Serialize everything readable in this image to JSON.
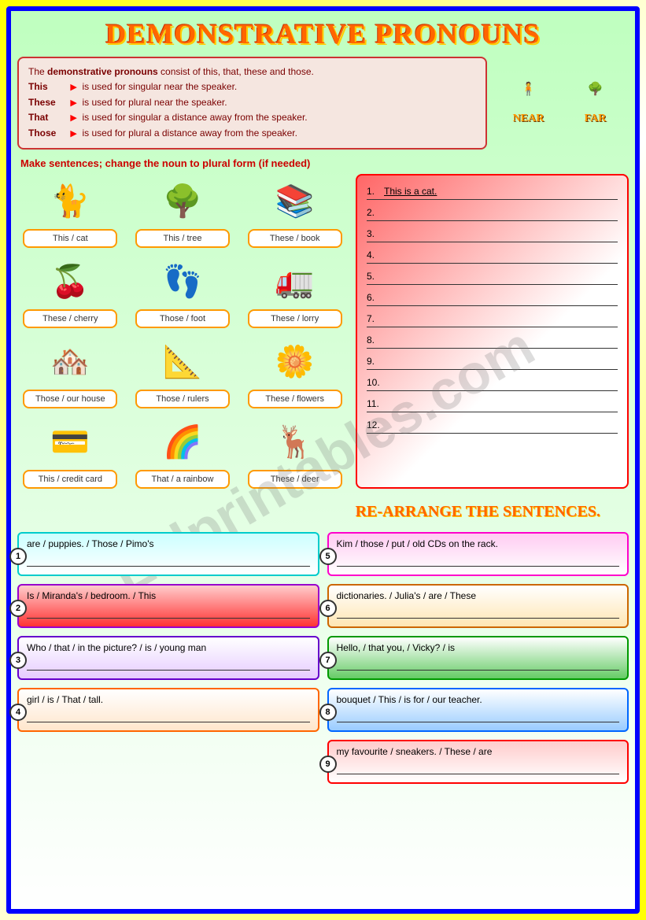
{
  "title": "DEMONSTRATIVE PRONOUNS",
  "explanation": {
    "intro_a": "The ",
    "intro_b": "demonstrative pronouns",
    "intro_c": " consist of this, that, these and those.",
    "rows": [
      {
        "word": "This",
        "text": "is used for singular near the speaker."
      },
      {
        "word": "These",
        "text": "is used for plural near the speaker."
      },
      {
        "word": "That",
        "text": "is used for singular a distance away from the speaker."
      },
      {
        "word": "Those",
        "text": "is used for plural a distance away from the speaker."
      }
    ]
  },
  "near_label": "NEAR",
  "far_label": "FAR",
  "instruction": "Make sentences; change the noun to plural form (if needed)",
  "grid": [
    {
      "label": "This / cat",
      "emoji": "🐈"
    },
    {
      "label": "This / tree",
      "emoji": "🌳"
    },
    {
      "label": "These / book",
      "emoji": "📚"
    },
    {
      "label": "These / cherry",
      "emoji": "🍒"
    },
    {
      "label": "Those / foot",
      "emoji": "👣"
    },
    {
      "label": "These / lorry",
      "emoji": "🚛"
    },
    {
      "label": "Those / our house",
      "emoji": "🏘️"
    },
    {
      "label": "Those / rulers",
      "emoji": "📐"
    },
    {
      "label": "These / flowers",
      "emoji": "🌼"
    },
    {
      "label": "This / credit card",
      "emoji": "💳"
    },
    {
      "label": "That / a rainbow",
      "emoji": "🌈"
    },
    {
      "label": "These / deer",
      "emoji": "🦌"
    }
  ],
  "answers": {
    "first": "This is a cat.",
    "count": 12
  },
  "subheading": "RE-ARRANGE THE SENTENCES.",
  "rearrange": [
    {
      "n": "1",
      "text": "are / puppies. / Those / Pimo's",
      "border": "#00cccc",
      "bg": "linear-gradient(to bottom,#ccffff,#ffffff)"
    },
    {
      "n": "2",
      "text": "Is / Miranda's / bedroom. / This",
      "border": "#9900cc",
      "bg": "linear-gradient(to bottom,#ffcccc,#ff3333)"
    },
    {
      "n": "3",
      "text": "Who / that / in the picture? / is / young man",
      "border": "#6600cc",
      "bg": "linear-gradient(to bottom,#ffffff,#e6ccff)"
    },
    {
      "n": "4",
      "text": "girl / is / That / tall.",
      "border": "#ff6600",
      "bg": "linear-gradient(to bottom,#ffffff,#ffe6cc)"
    },
    {
      "n": "5",
      "text": "Kim / those / put / old CDs on the rack.",
      "border": "#ff00cc",
      "bg": "linear-gradient(to bottom,#ffccf2,#ffffff)"
    },
    {
      "n": "6",
      "text": "dictionaries. / Julia's / are / These",
      "border": "#cc6600",
      "bg": "linear-gradient(to bottom,#ffffff,#ffe6b3)"
    },
    {
      "n": "7",
      "text": "Hello, / that you, / Vicky? / is",
      "border": "#009900",
      "bg": "linear-gradient(to bottom,#ffffff,#66cc66)"
    },
    {
      "n": "8",
      "text": "bouquet / This / is for / our teacher.",
      "border": "#0066ff",
      "bg": "linear-gradient(to bottom,#ffffff,#99ccff)"
    },
    {
      "n": "9",
      "text": "my favourite / sneakers. / These / are",
      "border": "#ff0000",
      "bg": "linear-gradient(to bottom,#ffcccc,#ffffff)"
    }
  ],
  "watermark": "Eslprintables.com",
  "colors": {
    "outer_border": "#0000ff",
    "title_color": "#ff6600",
    "tag_border": "#ff9900",
    "answers_border": "#ff0000"
  }
}
